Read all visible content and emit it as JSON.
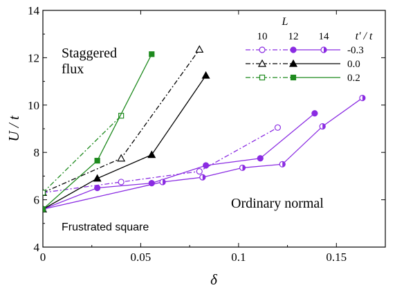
{
  "chart_data": {
    "type": "line",
    "xlabel": "δ",
    "ylabel": "U / t",
    "xlim": [
      0,
      0.175
    ],
    "ylim": [
      4,
      14
    ],
    "x_ticks": [
      0,
      0.05,
      0.1,
      0.15
    ],
    "x_tick_labels": [
      "0",
      "0.05",
      "0.1",
      "0.15"
    ],
    "y_ticks": [
      4,
      6,
      8,
      10,
      12,
      14
    ],
    "y_tick_labels": [
      "4",
      "6",
      "8",
      "10",
      "12",
      "14"
    ],
    "legend": {
      "placement": "top-right",
      "l_header": "L",
      "l_values": [
        "10",
        "12",
        "14"
      ],
      "tpt_header": "t' / t",
      "rows": [
        {
          "tpt": "-0.3",
          "color": "#8a2be2",
          "dash": "dashdot"
        },
        {
          "tpt": "0.0",
          "color": "#000000",
          "dash": "dashdot"
        },
        {
          "tpt": "0.2",
          "color": "#1e8a1e",
          "dash": "dashdot"
        }
      ]
    },
    "annotations": [
      {
        "text": "Staggered",
        "color": "#8b0000"
      },
      {
        "text": "flux",
        "color": "#8b0000"
      },
      {
        "text": "Ordinary normal",
        "color": "#1a1a8c"
      },
      {
        "text": "Frustrated square",
        "color": "#000000"
      }
    ],
    "series": [
      {
        "tpt": "-0.3",
        "L": "10",
        "color": "#8a2be2",
        "marker": "circle-open",
        "dash": "dashdot",
        "x": [
          0,
          0.04,
          0.08,
          0.12
        ],
        "y": [
          6.3,
          6.75,
          7.2,
          9.05
        ]
      },
      {
        "tpt": "-0.3",
        "L": "12",
        "color": "#8a2be2",
        "marker": "circle-filled",
        "dash": "solid",
        "x": [
          0,
          0.0278,
          0.0556,
          0.0833,
          0.1111,
          0.1389
        ],
        "y": [
          5.6,
          6.5,
          6.7,
          7.45,
          7.75,
          9.65
        ]
      },
      {
        "tpt": "-0.3",
        "L": "14",
        "color": "#8a2be2",
        "marker": "circle-half",
        "dash": "solid",
        "x": [
          0,
          0.0612,
          0.0816,
          0.102,
          0.1224,
          0.1429,
          0.1633
        ],
        "y": [
          5.6,
          6.75,
          6.95,
          7.35,
          7.5,
          9.1,
          10.3
        ]
      },
      {
        "tpt": "0.0",
        "L": "10",
        "color": "#000000",
        "marker": "triangle-open",
        "dash": "dashdot",
        "x": [
          0,
          0.04,
          0.08
        ],
        "y": [
          6.3,
          7.75,
          12.35
        ]
      },
      {
        "tpt": "0.0",
        "L": "12",
        "color": "#000000",
        "marker": "triangle-filled",
        "dash": "solid",
        "x": [
          0,
          0.0278,
          0.0556,
          0.0833
        ],
        "y": [
          5.6,
          6.9,
          7.9,
          11.25
        ]
      },
      {
        "tpt": "0.2",
        "L": "10",
        "color": "#1e8a1e",
        "marker": "square-open",
        "dash": "dashdot",
        "x": [
          0,
          0.04
        ],
        "y": [
          6.3,
          9.55
        ]
      },
      {
        "tpt": "0.2",
        "L": "12",
        "color": "#1e8a1e",
        "marker": "square-filled",
        "dash": "solid",
        "x": [
          0,
          0.0278,
          0.0556
        ],
        "y": [
          5.6,
          7.65,
          12.15
        ]
      }
    ]
  }
}
